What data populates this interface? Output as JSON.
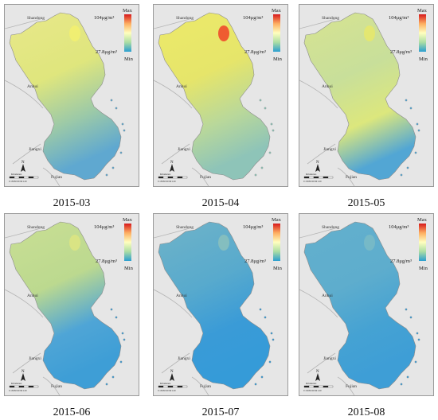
{
  "panels": [
    {
      "caption": "2015-03",
      "variant": "m03"
    },
    {
      "caption": "2015-04",
      "variant": "m04"
    },
    {
      "caption": "2015-05",
      "variant": "m05"
    },
    {
      "caption": "2015-06",
      "variant": "m06"
    },
    {
      "caption": "2015-07",
      "variant": "m07"
    },
    {
      "caption": "2015-08",
      "variant": "m08"
    }
  ],
  "regions": {
    "shandong": "Shandong",
    "anhui": "Anhui",
    "jiangxi": "Jiangxi",
    "fujian": "Fujian"
  },
  "legend": {
    "max_label": "Max",
    "min_label": "Min",
    "max_value": "104μg/m³",
    "min_value": "27.8μg/m³",
    "colors": [
      "#d7191c",
      "#fdae61",
      "#ffffbf",
      "#abdda4",
      "#2b9fd0"
    ]
  },
  "scale_bar": {
    "labels": "0 15030 60 90 120",
    "unit": "Kilometers"
  },
  "north_arrow": {
    "label": "N"
  }
}
